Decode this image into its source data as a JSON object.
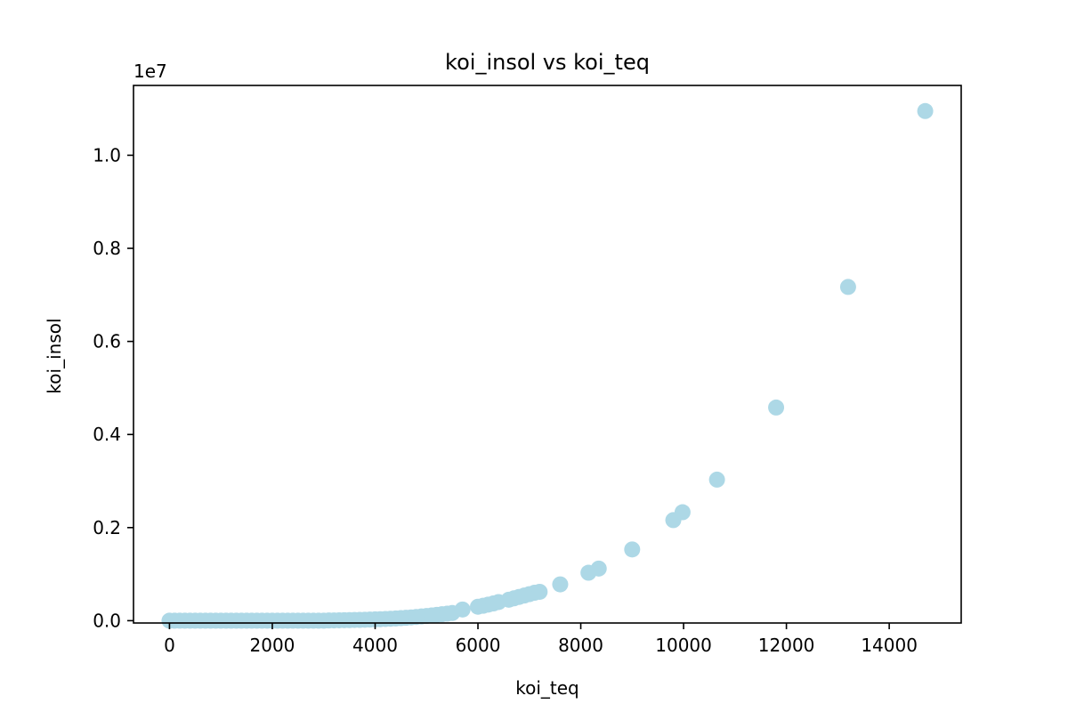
{
  "chart_data": {
    "type": "scatter",
    "title": "koi_insol vs koi_teq",
    "xlabel": "koi_teq",
    "ylabel": "koi_insol",
    "y_offset_label": "1e7",
    "xlim": [
      -700,
      15400
    ],
    "ylim": [
      -50000,
      11500000
    ],
    "xticks": [
      0,
      2000,
      4000,
      6000,
      8000,
      10000,
      12000,
      14000
    ],
    "xtick_labels": [
      "0",
      "2000",
      "4000",
      "6000",
      "8000",
      "10000",
      "12000",
      "14000"
    ],
    "yticks": [
      0,
      2000000,
      4000000,
      6000000,
      8000000,
      10000000
    ],
    "ytick_labels": [
      "0.0",
      "0.2",
      "0.4",
      "0.6",
      "0.8",
      "1.0"
    ],
    "marker_color": "#add8e6",
    "grid": false,
    "points": [
      [
        0,
        0
      ],
      [
        100,
        0
      ],
      [
        200,
        0
      ],
      [
        300,
        0
      ],
      [
        400,
        0
      ],
      [
        500,
        0
      ],
      [
        600,
        0
      ],
      [
        700,
        0
      ],
      [
        800,
        0
      ],
      [
        900,
        0
      ],
      [
        1000,
        0
      ],
      [
        1100,
        0
      ],
      [
        1200,
        0
      ],
      [
        1300,
        0
      ],
      [
        1400,
        0
      ],
      [
        1500,
        0
      ],
      [
        1600,
        0
      ],
      [
        1700,
        0
      ],
      [
        1800,
        0
      ],
      [
        1900,
        0
      ],
      [
        2000,
        0
      ],
      [
        2100,
        0
      ],
      [
        2200,
        0
      ],
      [
        2300,
        0
      ],
      [
        2400,
        0
      ],
      [
        2500,
        0
      ],
      [
        2600,
        0
      ],
      [
        2700,
        0
      ],
      [
        2800,
        0
      ],
      [
        2900,
        0
      ],
      [
        3000,
        0
      ],
      [
        3100,
        4000
      ],
      [
        3200,
        6000
      ],
      [
        3300,
        8000
      ],
      [
        3400,
        10000
      ],
      [
        3500,
        12000
      ],
      [
        3600,
        15000
      ],
      [
        3700,
        17000
      ],
      [
        3800,
        20000
      ],
      [
        3900,
        24000
      ],
      [
        4000,
        28000
      ],
      [
        4100,
        32000
      ],
      [
        4200,
        37000
      ],
      [
        4300,
        42000
      ],
      [
        4400,
        48000
      ],
      [
        4500,
        55000
      ],
      [
        4600,
        62000
      ],
      [
        4700,
        70000
      ],
      [
        4800,
        80000
      ],
      [
        4900,
        90000
      ],
      [
        5000,
        100000
      ],
      [
        5100,
        112000
      ],
      [
        5200,
        125000
      ],
      [
        5300,
        138000
      ],
      [
        5400,
        150000
      ],
      [
        5500,
        165000
      ],
      [
        5700,
        240000
      ],
      [
        6000,
        300000
      ],
      [
        6100,
        320000
      ],
      [
        6200,
        345000
      ],
      [
        6300,
        370000
      ],
      [
        6400,
        400000
      ],
      [
        6600,
        450000
      ],
      [
        6700,
        480000
      ],
      [
        6800,
        510000
      ],
      [
        6900,
        540000
      ],
      [
        7000,
        570000
      ],
      [
        7100,
        600000
      ],
      [
        7200,
        620000
      ],
      [
        7600,
        780000
      ],
      [
        8150,
        1030000
      ],
      [
        8350,
        1120000
      ],
      [
        9000,
        1530000
      ],
      [
        9800,
        2160000
      ],
      [
        9980,
        2330000
      ],
      [
        10650,
        3030000
      ],
      [
        11800,
        4580000
      ],
      [
        13200,
        7170000
      ],
      [
        14700,
        10950000
      ]
    ]
  }
}
